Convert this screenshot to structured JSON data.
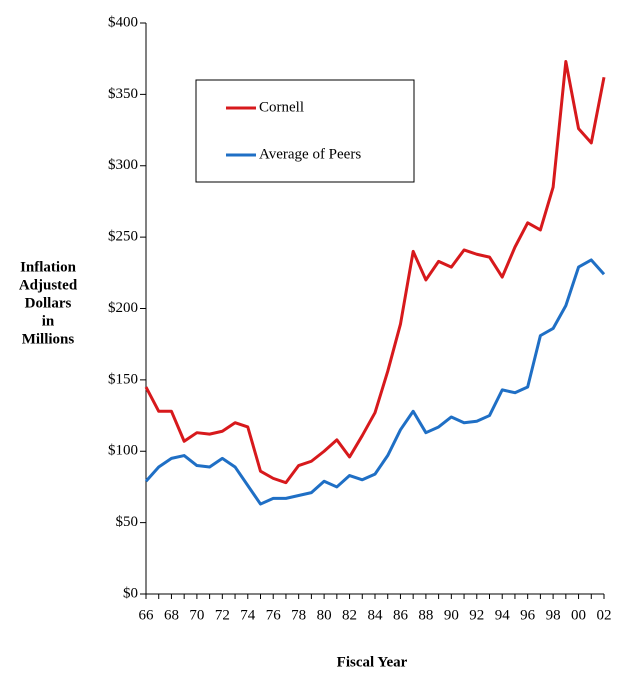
{
  "chart_data": {
    "type": "line",
    "xlabel": "Fiscal Year",
    "ylabel": [
      "Inflation",
      "Adjusted",
      "Dollars",
      "in",
      "Millions"
    ],
    "categories": [
      "66",
      null,
      "68",
      null,
      "70",
      null,
      "72",
      null,
      "74",
      null,
      "76",
      null,
      "78",
      null,
      "80",
      null,
      "82",
      null,
      "84",
      null,
      "86",
      null,
      "88",
      null,
      "90",
      null,
      "92",
      null,
      "94",
      null,
      "96",
      null,
      "98",
      null,
      "00",
      null,
      "02"
    ],
    "series": [
      {
        "name": "Cornell",
        "color": "#d7191c",
        "values": [
          145,
          128,
          128,
          107,
          113,
          112,
          114,
          120,
          117,
          86,
          81,
          78,
          90,
          93,
          100,
          108,
          96,
          111,
          127,
          156,
          189,
          240,
          220,
          233,
          229,
          241,
          238,
          236,
          222,
          243,
          260,
          255,
          285,
          373,
          326,
          316,
          362
        ]
      },
      {
        "name": "Average of Peers",
        "color": "#1f6fc5",
        "values": [
          79,
          89,
          95,
          97,
          90,
          89,
          95,
          89,
          76,
          63,
          67,
          67,
          69,
          71,
          79,
          75,
          83,
          80,
          84,
          97,
          115,
          128,
          113,
          117,
          124,
          120,
          121,
          125,
          143,
          141,
          145,
          181,
          186,
          202,
          229,
          234,
          224
        ]
      }
    ],
    "ylim": [
      0,
      400
    ],
    "yticks": [
      {
        "value": 0,
        "label": "$0"
      },
      {
        "value": 50,
        "label": "$50"
      },
      {
        "value": 100,
        "label": "$100"
      },
      {
        "value": 150,
        "label": "$150"
      },
      {
        "value": 200,
        "label": "$200"
      },
      {
        "value": 250,
        "label": "$250"
      },
      {
        "value": 300,
        "label": "$300"
      },
      {
        "value": 350,
        "label": "$350"
      },
      {
        "value": 400,
        "label": "$400"
      }
    ],
    "grid": false,
    "legend": "upper left"
  }
}
